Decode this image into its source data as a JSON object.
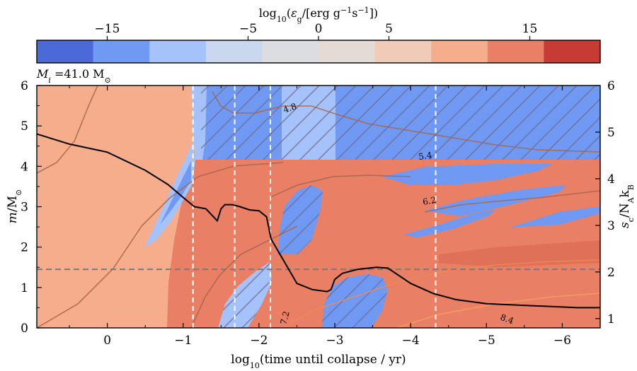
{
  "figure": {
    "colorbar": {
      "title_html": "log<tspan baseline-shift='sub' font-size='11'>10</tspan>(<tspan font-style='italic'>ε</tspan><tspan baseline-shift='sub' font-size='11'>g</tspan>/[erg g<tspan baseline-shift='super' font-size='11'>−1</tspan>s<tspan baseline-shift='super' font-size='11'>−1</tspan>])",
      "range": [
        -20,
        20
      ],
      "tick_values": [
        -15,
        -5,
        0,
        5,
        15
      ],
      "tick_labels": [
        "−15",
        "−5",
        "0",
        "5",
        "15"
      ],
      "colors": [
        "#4b69d8",
        "#7099f4",
        "#a6c2fb",
        "#c9d7ef",
        "#dcdde1",
        "#e5dbd6",
        "#f0ccb8",
        "#f5ad8c",
        "#e97f65",
        "#c83b35"
      ]
    },
    "mass_label": "M",
    "mass_label_sub": "i",
    "mass_label_value": " =41.0 M",
    "mass_label_unit_sub": "⊙"
  },
  "chart_data": {
    "type": "area",
    "title": "",
    "xlabel": "log10(time until collapse / yr)",
    "ylabel": "m/M⊙",
    "y2label": "sc/NAkB",
    "xlim": [
      0.93,
      -6.5
    ],
    "ylim": [
      0,
      6
    ],
    "y2lim": [
      0.8,
      6
    ],
    "x_ticks": [
      0,
      -1,
      -2,
      -3,
      -4,
      -5,
      -6
    ],
    "x_tick_labels": [
      "0",
      "−1",
      "−2",
      "−3",
      "−4",
      "−5",
      "−6"
    ],
    "y_ticks": [
      0,
      1,
      2,
      3,
      4,
      5,
      6
    ],
    "y_tick_labels": [
      "0",
      "1",
      "2",
      "3",
      "4",
      "5",
      "6"
    ],
    "y2_ticks": [
      1,
      2,
      3,
      4,
      5,
      6
    ],
    "y2_tick_labels": [
      "1",
      "2",
      "3",
      "4",
      "5",
      "6"
    ],
    "vertical_dashed_lines_x": [
      -1.13,
      -1.68,
      -2.15,
      -4.33
    ],
    "horizontal_dashed_line_y": 1.45,
    "central_entropy": {
      "x": [
        0.93,
        0.5,
        0.0,
        -0.5,
        -0.8,
        -1.05,
        -1.15,
        -1.3,
        -1.4,
        -1.45,
        -1.5,
        -1.55,
        -1.65,
        -1.75,
        -1.88,
        -2.0,
        -2.1,
        -2.16,
        -2.3,
        -2.5,
        -2.7,
        -2.9,
        -2.95,
        -3.0,
        -3.1,
        -3.3,
        -3.55,
        -3.7,
        -4.0,
        -4.3,
        -4.6,
        -5.0,
        -5.6,
        -6.2,
        -6.5
      ],
      "y": [
        4.8,
        4.55,
        4.35,
        3.9,
        3.55,
        3.15,
        3.0,
        2.95,
        2.75,
        2.65,
        2.95,
        3.05,
        3.05,
        3.0,
        2.92,
        2.9,
        2.75,
        2.2,
        1.75,
        1.1,
        0.95,
        0.9,
        0.95,
        1.2,
        1.35,
        1.45,
        1.5,
        1.48,
        1.1,
        0.85,
        0.7,
        0.6,
        0.55,
        0.5,
        0.5
      ]
    },
    "regions": [
      {
        "name": "base-heating",
        "value": 5
      },
      {
        "name": "core-heating",
        "value": 10
      },
      {
        "name": "inner-cooling-shell",
        "value": -10
      },
      {
        "name": "envelope-cooling-band",
        "value": -10
      },
      {
        "name": "central-cooling-pocket",
        "value": -10
      }
    ],
    "contour_labels": [
      "4.8",
      "5.4",
      "6.2",
      "7.2",
      "8.4"
    ]
  }
}
